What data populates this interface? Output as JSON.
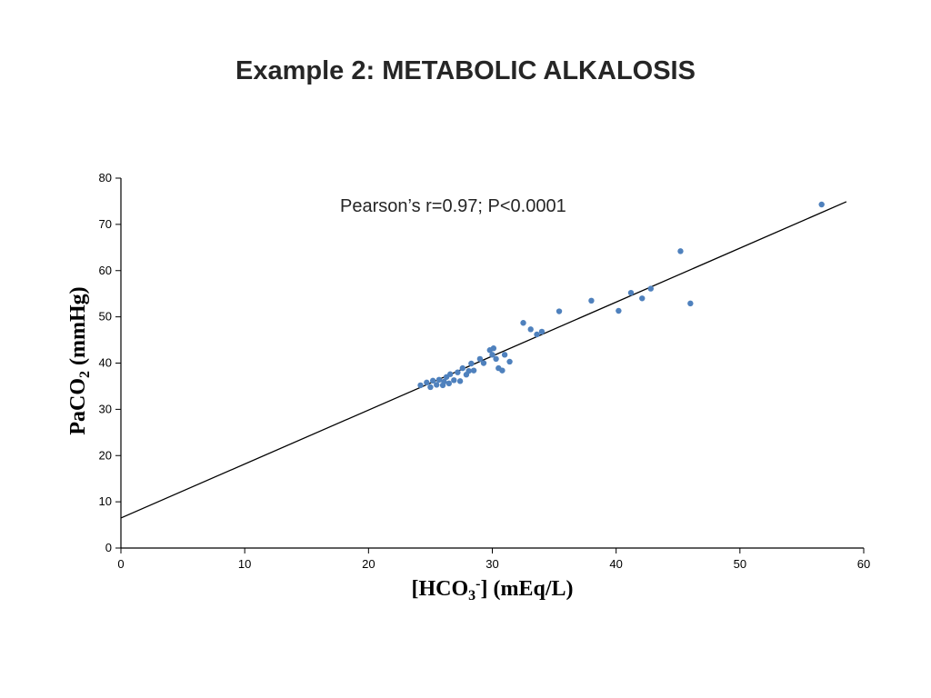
{
  "slide": {
    "title": "Example 2: METABOLIC ALKALOSIS"
  },
  "chart_data": {
    "type": "scatter",
    "title": "Example 2: METABOLIC ALKALOSIS",
    "annotation": "Pearson’s r=0.97; P<0.0001",
    "xlabel": "[HCO3-] (mEq/L)",
    "ylabel": "PaCO2 (mmHg)",
    "xlabel_parts": {
      "p1": "[HCO",
      "sub": "3",
      "sup": "-",
      "p2": "] (mEq/L)"
    },
    "ylabel_parts": {
      "p1": "PaCO",
      "sub": "2",
      "p2": " (mmHg)"
    },
    "xlim": [
      0,
      60
    ],
    "ylim": [
      0,
      80
    ],
    "xticks": [
      0,
      10,
      20,
      30,
      40,
      50,
      60
    ],
    "yticks": [
      0,
      10,
      20,
      30,
      40,
      50,
      60,
      70,
      80
    ],
    "grid": false,
    "legend": "none",
    "point_color": "#4f81bd",
    "line_color": "#000000",
    "trendline": {
      "x1": 0,
      "y1": 6.5,
      "x2": 58.6,
      "y2": 74.9
    },
    "points": [
      [
        24.2,
        35.2
      ],
      [
        24.7,
        35.8
      ],
      [
        25.0,
        34.8
      ],
      [
        25.2,
        36.2
      ],
      [
        25.5,
        35.3
      ],
      [
        25.7,
        36.4
      ],
      [
        26.0,
        35.2
      ],
      [
        26.1,
        36.0
      ],
      [
        26.3,
        37.0
      ],
      [
        26.5,
        35.6
      ],
      [
        26.6,
        37.6
      ],
      [
        26.9,
        36.3
      ],
      [
        27.2,
        38.0
      ],
      [
        27.4,
        36.1
      ],
      [
        27.6,
        38.9
      ],
      [
        27.9,
        37.5
      ],
      [
        28.1,
        38.3
      ],
      [
        28.3,
        39.9
      ],
      [
        28.5,
        38.4
      ],
      [
        29.0,
        40.9
      ],
      [
        29.3,
        40.0
      ],
      [
        29.8,
        42.8
      ],
      [
        30.0,
        41.8
      ],
      [
        30.1,
        43.2
      ],
      [
        30.3,
        40.9
      ],
      [
        30.5,
        38.9
      ],
      [
        30.8,
        38.4
      ],
      [
        31.0,
        41.8
      ],
      [
        31.4,
        40.3
      ],
      [
        32.5,
        48.7
      ],
      [
        33.1,
        47.3
      ],
      [
        33.6,
        46.2
      ],
      [
        34.0,
        46.8
      ],
      [
        35.4,
        51.2
      ],
      [
        38.0,
        53.5
      ],
      [
        40.2,
        51.3
      ],
      [
        41.2,
        55.2
      ],
      [
        42.1,
        54.0
      ],
      [
        42.8,
        56.1
      ],
      [
        45.2,
        64.2
      ],
      [
        46.0,
        52.9
      ],
      [
        56.6,
        74.3
      ]
    ]
  }
}
